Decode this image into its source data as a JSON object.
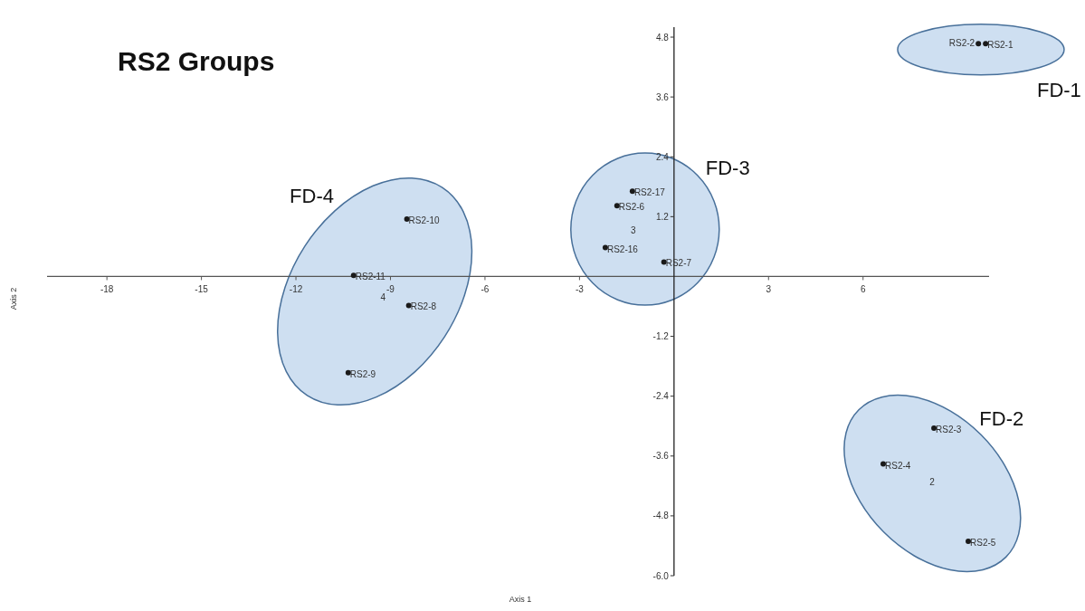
{
  "chart_data": {
    "type": "scatter",
    "title": "RS2 Groups",
    "xlabel": "Axis 1",
    "ylabel": "Axis 2",
    "xlim": [
      -19.9,
      10
    ],
    "ylim": [
      -6,
      5
    ],
    "xticks": [
      -18,
      -15,
      -12,
      -9,
      -6,
      -3,
      3,
      6
    ],
    "yticks": [
      4.8,
      3.6,
      2.4,
      1.2,
      -1.2,
      -2.4,
      -3.6,
      -4.8,
      {
        "value": -6,
        "label": "-6.0"
      }
    ],
    "marker": "circle",
    "grid": false,
    "series": [
      {
        "color": "#1a1a1a",
        "x": [
          9.89,
          9.66
        ],
        "values": [
          4.67,
          4.67
        ]
      },
      {
        "color": "#1a1a1a",
        "x": [
          8.25,
          6.64,
          9.34
        ],
        "values": [
          -3.04,
          -3.76,
          -5.31
        ]
      },
      {
        "color": "#1a1a1a",
        "x": [
          -1.81,
          -0.32,
          -2.18,
          -1.32
        ],
        "values": [
          1.42,
          0.29,
          0.58,
          1.71
        ]
      },
      {
        "color": "#1a1a1a",
        "x": [
          -8.42,
          -10.34,
          -8.48,
          -10.17
        ],
        "values": [
          -0.58,
          -1.93,
          1.15,
          0.02
        ]
      }
    ],
    "annotations": [
      {
        "text": "RS2-1",
        "x": 9.89,
        "y": 4.67
      },
      {
        "text": "RS2-2",
        "x": 9.66,
        "y": 4.67
      },
      {
        "text": "RS2-3",
        "x": 8.25,
        "y": -3.04
      },
      {
        "text": "RS2-4",
        "x": 6.64,
        "y": -3.76
      },
      {
        "text": "RS2-5",
        "x": 9.34,
        "y": -5.31
      },
      {
        "text": "RS2-6",
        "x": -1.81,
        "y": 1.42
      },
      {
        "text": "RS2-7",
        "x": -0.32,
        "y": 0.29
      },
      {
        "text": "RS2-16",
        "x": -2.18,
        "y": 0.58
      },
      {
        "text": "RS2-17",
        "x": -1.32,
        "y": 1.71
      },
      {
        "text": "RS2-8",
        "x": -8.42,
        "y": -0.58
      },
      {
        "text": "RS2-9",
        "x": -10.34,
        "y": -1.93
      },
      {
        "text": "RS2-10",
        "x": -8.48,
        "y": 1.15
      },
      {
        "text": "RS2-11",
        "x": -10.17,
        "y": 0.02
      },
      "FD-1",
      "FD-2",
      "FD-3",
      "FD-4",
      "2",
      "3",
      "4"
    ]
  }
}
